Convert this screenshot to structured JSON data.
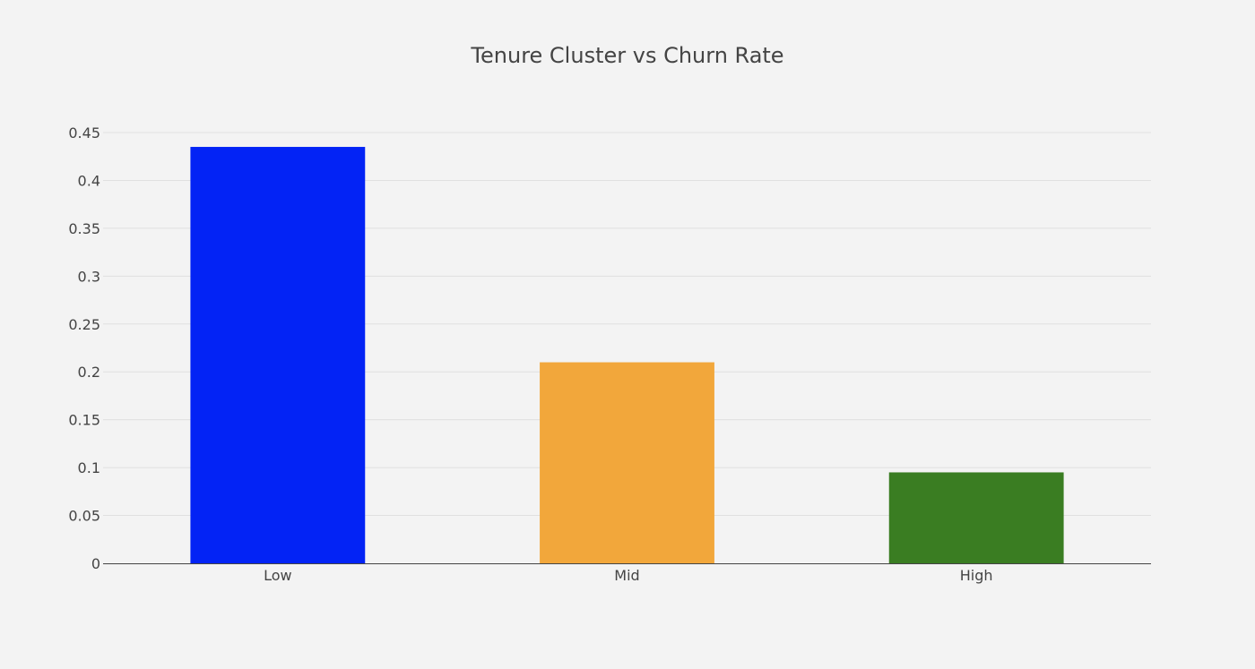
{
  "chart_data": {
    "type": "bar",
    "title": "Tenure Cluster vs Churn Rate",
    "xlabel": "",
    "ylabel": "",
    "categories": [
      "Low",
      "Mid",
      "High"
    ],
    "values": [
      0.435,
      0.21,
      0.095
    ],
    "colors": [
      "#0323f5",
      "#f2a73b",
      "#3a7d22"
    ],
    "ylim": [
      0,
      0.45
    ],
    "yticks": [
      0,
      0.05,
      0.1,
      0.15,
      0.2,
      0.25,
      0.3,
      0.35,
      0.4,
      0.45
    ],
    "ytick_labels": [
      "0",
      "0.05",
      "0.1",
      "0.15",
      "0.2",
      "0.25",
      "0.3",
      "0.35",
      "0.4",
      "0.45"
    ],
    "grid": true,
    "legend": false,
    "background_color": "#f3f3f3"
  }
}
